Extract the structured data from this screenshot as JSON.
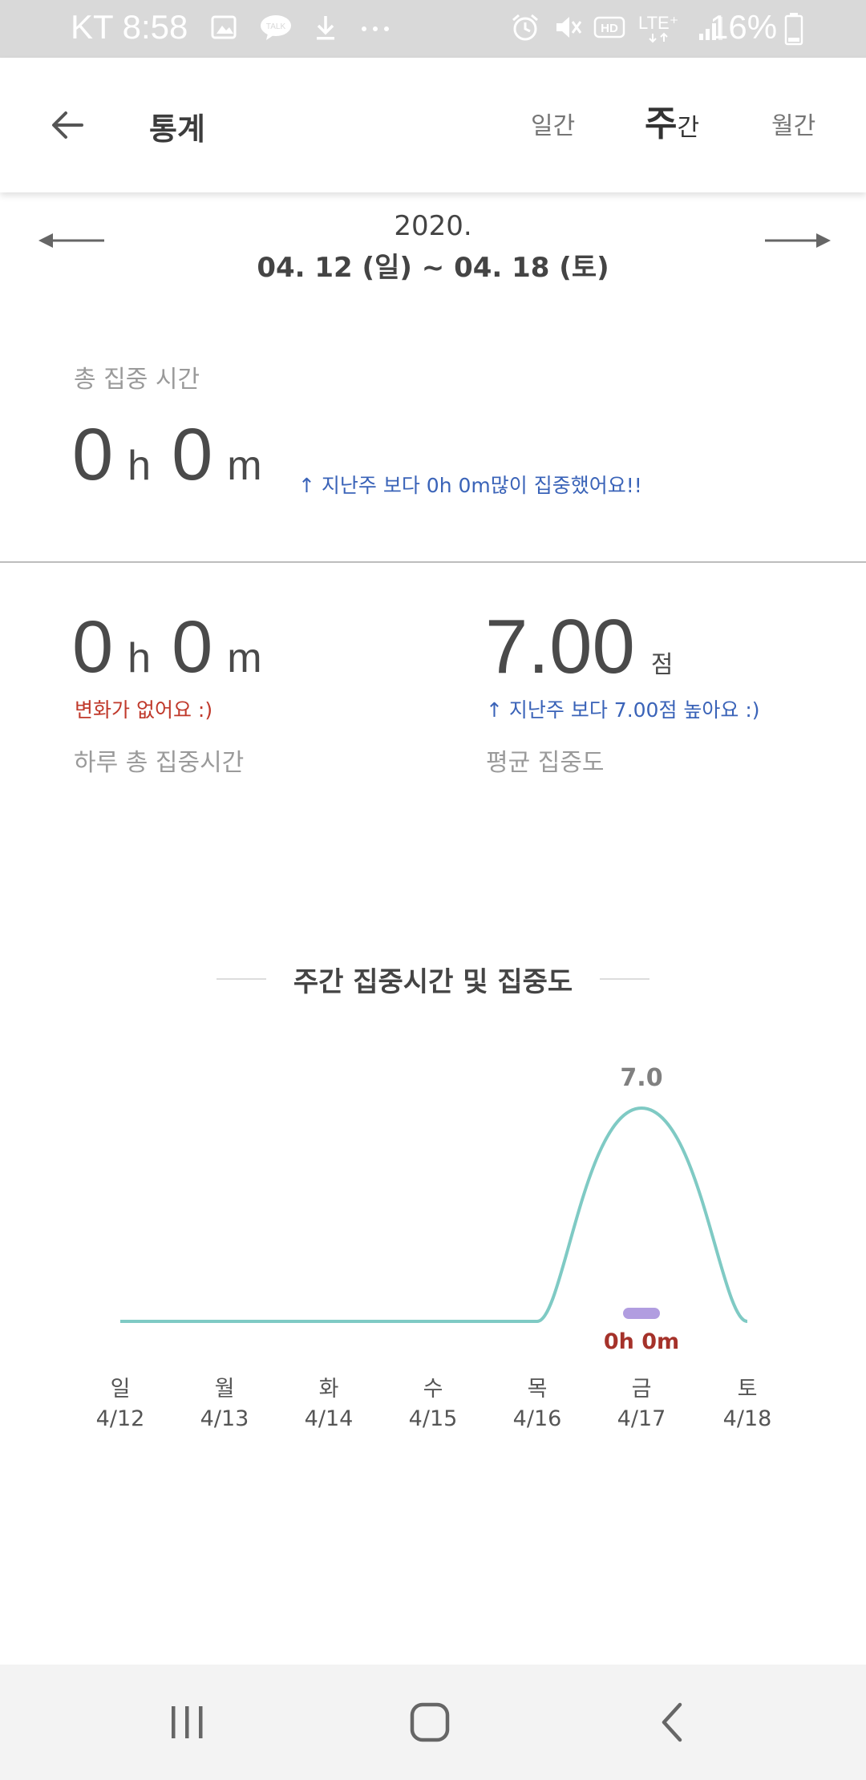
{
  "status_bar": {
    "carrier_time": "KT 8:58",
    "battery": "16%",
    "icons_left": [
      "image-icon",
      "talk-icon",
      "download-icon",
      "more-dots-icon"
    ],
    "icons_right": [
      "alarm-icon",
      "mute-icon",
      "hd-icon",
      "lte-icon",
      "signal-icon",
      "battery-icon"
    ],
    "talk_text": "TALK",
    "hd_text": "HD",
    "lte_text": "LTE⁺"
  },
  "header": {
    "title": "통계",
    "tabs": {
      "daily": "일간",
      "weekly_big": "주",
      "weekly_small": "간",
      "monthly": "월간"
    }
  },
  "date_nav": {
    "year": "2020.",
    "range": "04. 12 (일) ~ 04. 18 (토)"
  },
  "total": {
    "label": "총 집중 시간",
    "hours": "0",
    "hours_unit": "h",
    "minutes": "0",
    "minutes_unit": "m",
    "compare": "↑ 지난주 보다 0h 0m많이 집중했어요!!"
  },
  "daily_total": {
    "hours": "0",
    "hours_unit": "h",
    "minutes": "0",
    "minutes_unit": "m",
    "change": "변화가 없어요 :)",
    "label": "하루 총 집중시간"
  },
  "average": {
    "score": "7.00",
    "unit": "점",
    "compare": "↑ 지난주 보다 7.00점 높아요 :)",
    "label": "평균 집중도"
  },
  "colors": {
    "line": "#7fcac4",
    "bar": "#b19de0",
    "bar_label": "#a5322a",
    "up_text": "#3a63b8",
    "no_change": "#c0392b"
  },
  "chart_data": {
    "type": "line",
    "title": "주간 집중시간 및 집중도",
    "categories": [
      "일",
      "월",
      "화",
      "수",
      "목",
      "금",
      "토"
    ],
    "dates": [
      "4/12",
      "4/13",
      "4/14",
      "4/15",
      "4/16",
      "4/17",
      "4/18"
    ],
    "series": [
      {
        "values": [
          0,
          0,
          0,
          0,
          0,
          7.0,
          0
        ]
      }
    ],
    "point_labels": [
      {
        "category": "금",
        "text": "7.0"
      }
    ],
    "focus_time": [
      {
        "category": "금",
        "text": "0h 0m"
      }
    ],
    "ylim": [
      0,
      7
    ]
  }
}
